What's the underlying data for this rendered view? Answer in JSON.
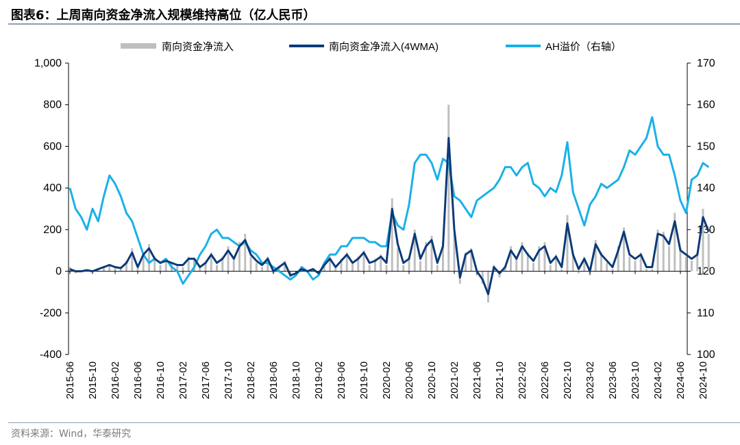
{
  "title": "图表6：上周南向资金净流入规模维持高位（亿人民币）",
  "source": "资料来源：Wind，华泰研究",
  "chart_data": {
    "type": "bar+line",
    "legend_position": "top",
    "grid": false,
    "colors": {
      "bars": "#bfbfbf",
      "wma": "#0b3a78",
      "ah": "#1ab0e8"
    },
    "x_start": "2015-06",
    "x_tick_labels": [
      "2015-06",
      "2015-10",
      "2016-02",
      "2016-06",
      "2016-10",
      "2017-02",
      "2017-06",
      "2017-10",
      "2018-02",
      "2018-06",
      "2018-10",
      "2019-02",
      "2019-06",
      "2019-10",
      "2020-02",
      "2020-06",
      "2020-10",
      "2021-02",
      "2021-06",
      "2021-10",
      "2022-02",
      "2022-06",
      "2022-10",
      "2023-02",
      "2023-06",
      "2023-10",
      "2024-02",
      "2024-06",
      "2024-10"
    ],
    "y_left": {
      "min": -400,
      "max": 1000,
      "ticks": [
        "-400",
        "-200",
        "0",
        "200",
        "400",
        "600",
        "800",
        "1,000"
      ]
    },
    "y_right": {
      "min": 100,
      "max": 170,
      "ticks": [
        "100",
        "110",
        "120",
        "130",
        "140",
        "150",
        "160",
        "170"
      ]
    },
    "series": [
      {
        "name": "南向资金净流入",
        "type": "bar",
        "axis": "left",
        "values": [
          20,
          -10,
          0,
          10,
          -5,
          15,
          25,
          35,
          25,
          10,
          50,
          110,
          15,
          90,
          130,
          70,
          30,
          60,
          45,
          25,
          20,
          70,
          65,
          15,
          45,
          90,
          30,
          70,
          120,
          55,
          140,
          180,
          70,
          40,
          20,
          70,
          -10,
          25,
          50,
          -30,
          -15,
          15,
          5,
          15,
          -20,
          40,
          70,
          15,
          60,
          90,
          35,
          70,
          100,
          30,
          60,
          80,
          30,
          350,
          110,
          30,
          70,
          200,
          50,
          140,
          170,
          30,
          140,
          800,
          180,
          -60,
          90,
          110,
          -20,
          -60,
          -150,
          30,
          -30,
          25,
          120,
          70,
          140,
          90,
          40,
          120,
          140,
          30,
          80,
          10,
          270,
          90,
          -10,
          70,
          -20,
          150,
          90,
          40,
          10,
          120,
          210,
          70,
          50,
          90,
          10,
          10,
          200,
          190,
          120,
          280,
          110,
          70,
          50,
          90,
          300,
          180
        ]
      },
      {
        "name": "南向资金净流入(4WMA)",
        "type": "line",
        "axis": "left",
        "values": [
          10,
          0,
          0,
          5,
          0,
          10,
          20,
          30,
          20,
          15,
          40,
          90,
          20,
          80,
          110,
          60,
          40,
          50,
          40,
          30,
          30,
          60,
          60,
          20,
          40,
          80,
          40,
          60,
          100,
          60,
          120,
          150,
          80,
          50,
          30,
          60,
          0,
          20,
          40,
          -20,
          -10,
          10,
          0,
          10,
          -10,
          30,
          60,
          20,
          50,
          80,
          40,
          60,
          90,
          40,
          50,
          70,
          40,
          300,
          130,
          40,
          60,
          180,
          60,
          120,
          150,
          40,
          120,
          640,
          200,
          -30,
          80,
          100,
          0,
          -40,
          -110,
          20,
          -10,
          20,
          100,
          60,
          120,
          80,
          50,
          100,
          120,
          40,
          70,
          20,
          230,
          80,
          10,
          60,
          0,
          130,
          80,
          50,
          20,
          100,
          190,
          80,
          60,
          80,
          20,
          20,
          180,
          170,
          130,
          240,
          100,
          80,
          60,
          80,
          260,
          190
        ]
      },
      {
        "name": "AH溢价（右轴）",
        "type": "line",
        "axis": "right",
        "values": [
          140,
          135,
          133,
          130,
          135,
          132,
          138,
          143,
          141,
          138,
          134,
          132,
          128,
          124,
          122,
          123,
          122,
          123,
          121,
          120,
          117,
          119,
          121,
          124,
          126,
          129,
          130,
          128,
          128,
          127,
          126,
          127,
          125,
          124,
          122,
          122,
          121,
          120,
          119,
          118,
          119,
          121,
          120,
          118,
          119,
          122,
          124,
          124,
          126,
          126,
          128,
          128,
          128,
          127,
          127,
          126,
          126,
          134,
          131,
          130,
          136,
          146,
          148,
          148,
          146,
          142,
          147,
          146,
          138,
          137,
          135,
          133,
          137,
          138,
          139,
          140,
          142,
          145,
          145,
          143,
          145,
          146,
          141,
          140,
          138,
          140,
          139,
          143,
          151,
          139,
          135,
          131,
          136,
          138,
          141,
          140,
          141,
          142,
          145,
          149,
          148,
          150,
          152,
          157,
          150,
          148,
          148,
          143,
          137,
          134,
          142,
          143,
          146,
          145
        ]
      }
    ]
  }
}
